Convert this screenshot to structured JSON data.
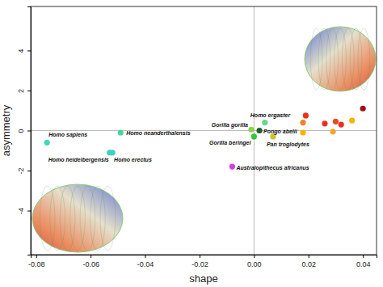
{
  "chart_data": {
    "type": "scatter",
    "x_label": "shape",
    "y_label": "asymmetry",
    "xlim": [
      -0.082,
      0.045
    ],
    "ylim": [
      -6.2,
      6.2
    ],
    "xticks": [
      -0.08,
      -0.06,
      -0.04,
      -0.02,
      {
        "value": 0,
        "label": "0.00"
      },
      0.02,
      0.04
    ],
    "yticks": [
      -4,
      -2,
      0,
      2,
      4
    ],
    "grid": false,
    "hlines": [
      0
    ],
    "vlines": [
      0
    ],
    "series": [
      {
        "name": null,
        "marker": "circle",
        "x": [
          -0.076,
          -0.049,
          -0.053,
          -0.052,
          0.004,
          -0.001,
          0.0,
          0.002,
          0.007,
          -0.008,
          0.018,
          0.018,
          0.019,
          0.026,
          0.03,
          0.032,
          0.029,
          0.036,
          0.04
        ],
        "values": [
          -0.6,
          -0.1,
          -1.1,
          -1.1,
          0.4,
          0.05,
          -0.3,
          0.0,
          -0.3,
          -1.8,
          -0.1,
          0.4,
          0.75,
          0.35,
          0.45,
          0.3,
          -0.05,
          0.5,
          1.1
        ],
        "labels": [
          "Homo sapiens",
          "Homo neanderthalensis",
          "Homo heidelbergensis",
          "Homo erectus",
          "Homo ergaster",
          "Gorilla gorilla",
          "Gorilla beringei",
          "Pongo abelii",
          "Pan troglodytes",
          "Australopithecus africanus",
          null,
          null,
          null,
          null,
          null,
          null,
          null,
          null,
          null
        ],
        "colors": [
          "#44d7b6",
          "#4ad3a0",
          "#3ecfbf",
          "#3ecfbf",
          "#66d98a",
          "#8fd24a",
          "#35c43a",
          "#1f5e2b",
          "#c9c228",
          "#d63ee0",
          "#f5b400",
          "#f58220",
          "#e8321e",
          "#e8321e",
          "#e84a1e",
          "#e8321e",
          "#f5a623",
          "#f5b400",
          "#a01010"
        ]
      }
    ]
  }
}
